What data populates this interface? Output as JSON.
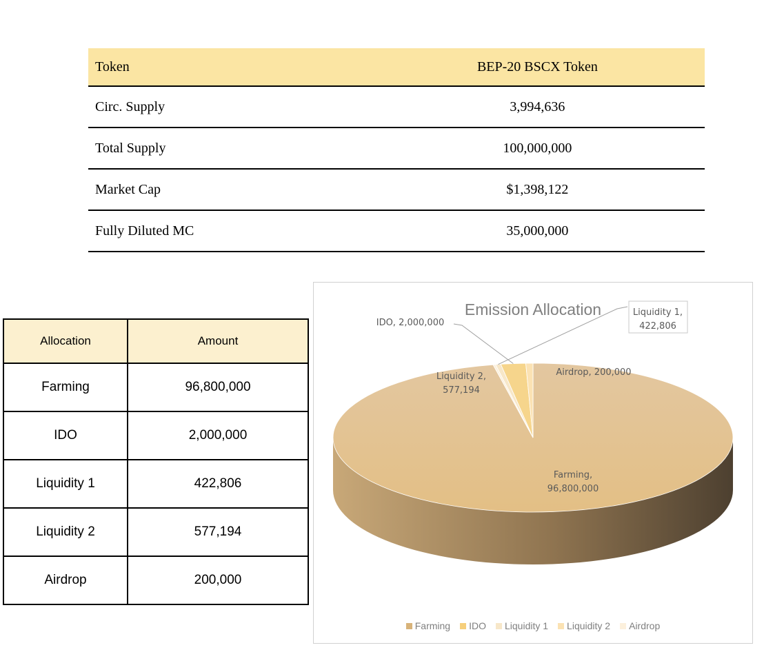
{
  "token_table": {
    "header": {
      "label": "Token",
      "value": "BEP-20 BSCX Token"
    },
    "rows": [
      {
        "label": "Circ. Supply",
        "value": "3,994,636"
      },
      {
        "label": "Total Supply",
        "value": "100,000,000"
      },
      {
        "label": "Market Cap",
        "value": "$1,398,122"
      },
      {
        "label": "Fully Diluted MC",
        "value": "35,000,000"
      }
    ]
  },
  "allocation_table": {
    "headers": [
      "Allocation",
      "Amount"
    ],
    "rows": [
      {
        "name": "Farming",
        "amount": "96,800,000"
      },
      {
        "name": "IDO",
        "amount": "2,000,000"
      },
      {
        "name": "Liquidity 1",
        "amount": "422,806"
      },
      {
        "name": "Liquidity 2",
        "amount": "577,194"
      },
      {
        "name": "Airdrop",
        "amount": "200,000"
      }
    ]
  },
  "chart_data": {
    "type": "pie",
    "title": "Emission Allocation",
    "variant": "3d",
    "legend_position": "bottom",
    "categories": [
      "Farming",
      "IDO",
      "Liquidity 1",
      "Liquidity 2",
      "Airdrop"
    ],
    "values": [
      96800000,
      2000000,
      422806,
      577194,
      200000
    ],
    "colors": [
      "#e2c08f",
      "#f6d58c",
      "#f7e7c9",
      "#fbe2b3",
      "#fcf0dc"
    ],
    "data_labels": [
      [
        "Farming,",
        "96,800,000"
      ],
      [
        "IDO, 2,000,000"
      ],
      [
        "Liquidity 1,",
        "422,806"
      ],
      [
        "Liquidity 2,",
        "577,194"
      ],
      [
        "Airdrop, 200,000"
      ]
    ]
  }
}
